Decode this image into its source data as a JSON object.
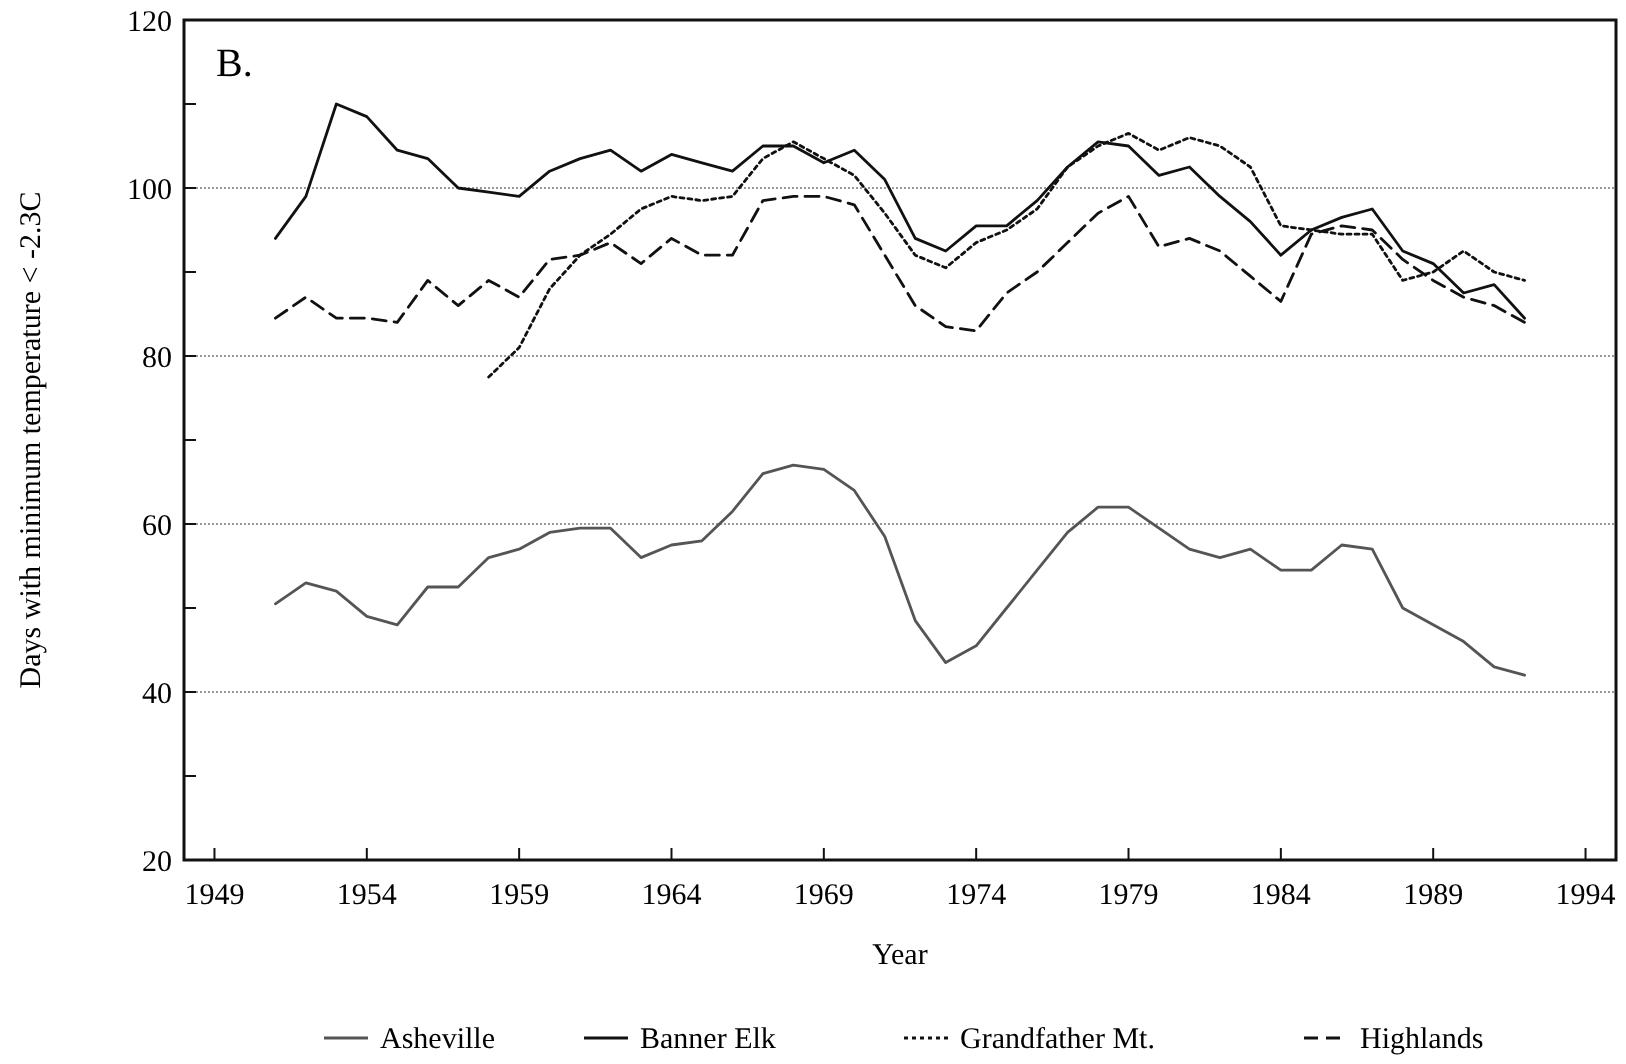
{
  "chart_data": {
    "type": "line",
    "title": "B.",
    "xlabel": "Year",
    "ylabel": "Days with minimum temperature < -2.3C",
    "xlim": [
      1948,
      1995
    ],
    "xticks": [
      1949,
      1954,
      1959,
      1964,
      1969,
      1974,
      1979,
      1984,
      1989,
      1994
    ],
    "ylim": [
      20,
      120
    ],
    "yticks": [
      20,
      {
        "value": 30,
        "label": null
      },
      40,
      {
        "value": 50,
        "label": null
      },
      60,
      {
        "value": 70,
        "label": null
      },
      80,
      {
        "value": 90,
        "label": null
      },
      100,
      {
        "value": 110,
        "label": null
      },
      120
    ],
    "grid": "y",
    "legend": "bottom",
    "marker": "none",
    "series": [
      {
        "name": "Asheville",
        "color": "#555555",
        "line_style": "solid",
        "x": [
          1951,
          1952,
          1953,
          1954,
          1955,
          1956,
          1957,
          1958,
          1959,
          1960,
          1961,
          1962,
          1963,
          1964,
          1965,
          1966,
          1967,
          1968,
          1969,
          1970,
          1971,
          1972,
          1973,
          1974,
          1975,
          1976,
          1977,
          1978,
          1979,
          1980,
          1981,
          1982,
          1983,
          1984,
          1985,
          1986,
          1987,
          1988,
          1989,
          1990,
          1991,
          1992
        ],
        "values": [
          50.5,
          53,
          52,
          49,
          48,
          52.5,
          52.5,
          56,
          57,
          59,
          59.5,
          59.5,
          56,
          57.5,
          58,
          61.5,
          66,
          67,
          66.5,
          64,
          58.5,
          48.5,
          43.5,
          45.5,
          50,
          54.5,
          59,
          62,
          62,
          59.5,
          57,
          56,
          57,
          54.5,
          54.5,
          57.5,
          57,
          50,
          48,
          46,
          43,
          42
        ]
      },
      {
        "name": "Banner Elk",
        "color": "#111111",
        "line_style": "solid",
        "x": [
          1951,
          1952,
          1953,
          1954,
          1955,
          1956,
          1957,
          1958,
          1959,
          1960,
          1961,
          1962,
          1963,
          1964,
          1965,
          1966,
          1967,
          1968,
          1969,
          1970,
          1971,
          1972,
          1973,
          1974,
          1975,
          1976,
          1977,
          1978,
          1979,
          1980,
          1981,
          1982,
          1983,
          1984,
          1985,
          1986,
          1987,
          1988,
          1989,
          1990,
          1991,
          1992
        ],
        "values": [
          94,
          99,
          110,
          108.5,
          104.5,
          103.5,
          100,
          99.5,
          99,
          102,
          103.5,
          104.5,
          102,
          104,
          103,
          102,
          105,
          105,
          103,
          104.5,
          101,
          94,
          92.5,
          95.5,
          95.5,
          98.5,
          102.5,
          105.5,
          105,
          101.5,
          102.5,
          99,
          96,
          92,
          95,
          96.5,
          97.5,
          92.5,
          91,
          87.5,
          88.5,
          84.5
        ]
      },
      {
        "name": "Grandfather Mt.",
        "color": "#111111",
        "line_style": "dotted",
        "x": [
          1958,
          1959,
          1960,
          1961,
          1962,
          1963,
          1964,
          1965,
          1966,
          1967,
          1968,
          1969,
          1970,
          1971,
          1972,
          1973,
          1974,
          1975,
          1976,
          1977,
          1978,
          1979,
          1980,
          1981,
          1982,
          1983,
          1984,
          1985,
          1986,
          1987,
          1988,
          1989,
          1990,
          1991,
          1992
        ],
        "values": [
          77.5,
          81,
          88,
          92,
          94.5,
          97.5,
          99,
          98.5,
          99,
          103.5,
          105.5,
          103.5,
          101.5,
          97,
          92,
          90.5,
          93.5,
          95,
          97.5,
          102.5,
          105,
          106.5,
          104.5,
          106,
          105,
          102.5,
          95.5,
          95,
          94.5,
          94.5,
          89,
          90,
          92.5,
          90,
          89
        ]
      },
      {
        "name": "Highlands",
        "color": "#111111",
        "line_style": "dashed",
        "x": [
          1951,
          1952,
          1953,
          1954,
          1955,
          1956,
          1957,
          1958,
          1959,
          1960,
          1961,
          1962,
          1963,
          1964,
          1965,
          1966,
          1967,
          1968,
          1969,
          1970,
          1971,
          1972,
          1973,
          1974,
          1975,
          1976,
          1977,
          1978,
          1979,
          1980,
          1981,
          1982,
          1983,
          1984,
          1985,
          1986,
          1987,
          1988,
          1989,
          1990,
          1991,
          1992
        ],
        "values": [
          84.5,
          87,
          84.5,
          84.5,
          84,
          89,
          86,
          89,
          87,
          91.5,
          92,
          93.5,
          91,
          94,
          92,
          92,
          98.5,
          99,
          99,
          98,
          92,
          86,
          83.5,
          83,
          87.5,
          90,
          93.5,
          97,
          99,
          93,
          94,
          92.5,
          89.5,
          86.5,
          94.5,
          95.5,
          95,
          91.5,
          89,
          87,
          86,
          84
        ]
      }
    ]
  }
}
